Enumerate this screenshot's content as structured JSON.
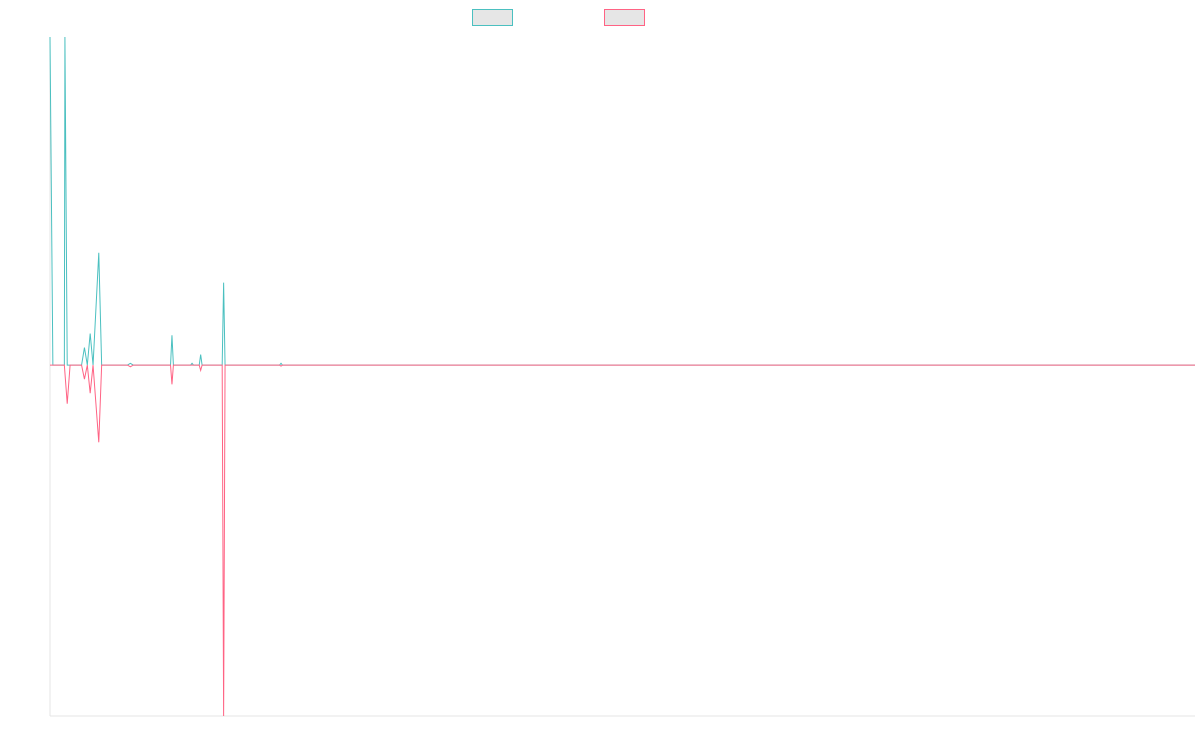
{
  "chart_data": {
    "type": "line",
    "title": "",
    "xlabel": "",
    "ylabel": "",
    "legend": {
      "position": "top-center",
      "entries": [
        {
          "name": "",
          "color": "#4bc0c0",
          "fill": "#e6e6e6"
        },
        {
          "name": "",
          "color": "#ff6384",
          "fill": "#e6e6e6"
        }
      ]
    },
    "grid": false,
    "x_count": 400,
    "ylim": [
      -1,
      0.935
    ],
    "series": [
      {
        "color": "#4bc0c0",
        "points": [
          [
            0,
            0.935
          ],
          [
            1,
            0
          ],
          [
            5,
            0
          ],
          [
            5.2,
            0.935
          ],
          [
            6,
            0
          ],
          [
            11,
            0
          ],
          [
            12,
            0.05
          ],
          [
            13,
            0
          ],
          [
            14,
            0.09
          ],
          [
            15,
            0
          ],
          [
            17,
            0.32
          ],
          [
            18,
            0
          ],
          [
            27,
            0
          ],
          [
            28,
            0.005
          ],
          [
            29,
            0
          ],
          [
            42,
            0
          ],
          [
            42.5,
            0.085
          ],
          [
            43,
            0
          ],
          [
            49,
            0
          ],
          [
            49.5,
            0.005
          ],
          [
            50,
            0
          ],
          [
            52,
            0
          ],
          [
            52.5,
            0.03
          ],
          [
            53,
            0
          ],
          [
            60,
            0
          ],
          [
            60.5,
            0.235
          ],
          [
            61,
            0
          ],
          [
            80,
            0
          ],
          [
            80.5,
            0.005
          ],
          [
            81,
            0
          ],
          [
            399,
            0
          ]
        ]
      },
      {
        "color": "#ff6384",
        "points": [
          [
            0,
            0
          ],
          [
            5,
            0
          ],
          [
            6,
            -0.11
          ],
          [
            7,
            0
          ],
          [
            11,
            0
          ],
          [
            12,
            -0.04
          ],
          [
            13,
            0
          ],
          [
            14,
            -0.08
          ],
          [
            15,
            0
          ],
          [
            17,
            -0.22
          ],
          [
            18,
            0
          ],
          [
            27,
            0
          ],
          [
            28,
            -0.005
          ],
          [
            29,
            0
          ],
          [
            42,
            0
          ],
          [
            42.5,
            -0.055
          ],
          [
            43,
            0
          ],
          [
            52,
            0
          ],
          [
            52.5,
            -0.015
          ],
          [
            53,
            0
          ],
          [
            60,
            0
          ],
          [
            60.5,
            -1
          ],
          [
            61,
            0
          ],
          [
            80,
            0
          ],
          [
            80.5,
            -0.003
          ],
          [
            81,
            0
          ],
          [
            399,
            0
          ]
        ]
      }
    ]
  }
}
